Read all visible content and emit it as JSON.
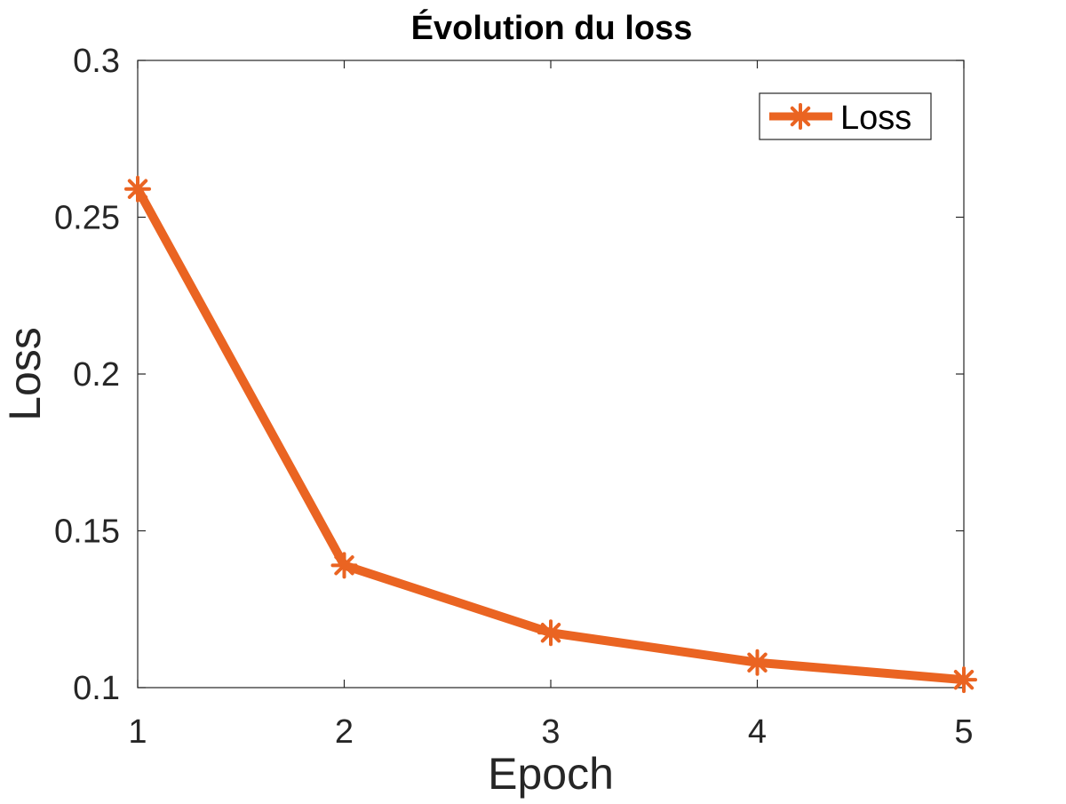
{
  "chart_data": {
    "type": "line",
    "title": "Évolution du loss",
    "xlabel": "Epoch",
    "ylabel": "Loss",
    "x": [
      1,
      2,
      3,
      4,
      5
    ],
    "xlim": [
      1,
      5
    ],
    "ylim": [
      0.1,
      0.3
    ],
    "xticks": [
      1,
      2,
      3,
      4,
      5
    ],
    "xtick_labels": [
      "1",
      "2",
      "3",
      "4",
      "5"
    ],
    "yticks": [
      0.1,
      0.15,
      0.2,
      0.25,
      0.3
    ],
    "ytick_labels": [
      "0.1",
      "0.15",
      "0.2",
      "0.25",
      "0.3"
    ],
    "grid": false,
    "legend_position": "top-right",
    "series": [
      {
        "name": "Loss",
        "values": [
          0.259,
          0.139,
          0.1175,
          0.108,
          0.1025
        ],
        "color": "#ea6422",
        "marker": "asterisk"
      }
    ]
  }
}
